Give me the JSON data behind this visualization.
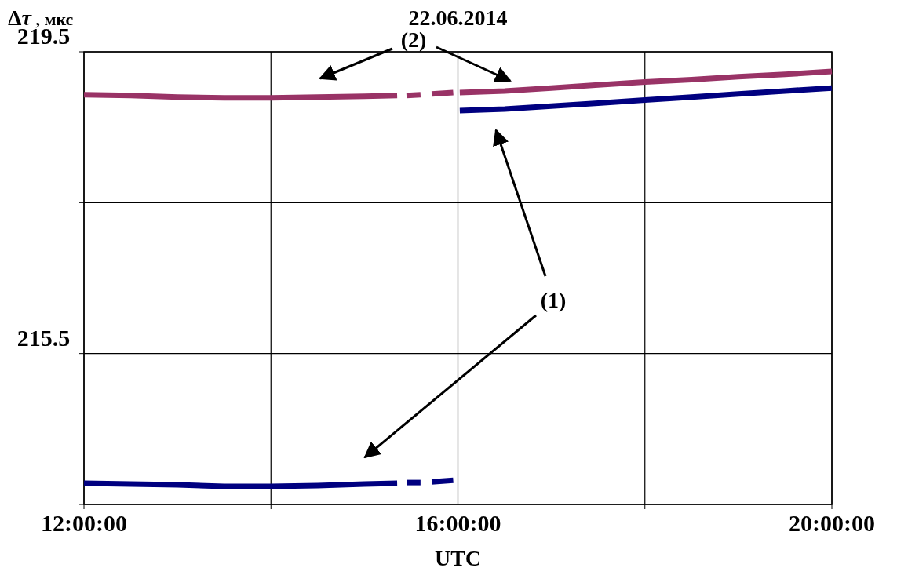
{
  "chart_data": {
    "type": "line",
    "title": "22.06.2014",
    "ylabel": "Δτ , мкс",
    "xlabel": "UTC",
    "xlim": [
      12,
      20
    ],
    "ylim": [
      213.5,
      219.5
    ],
    "xticks": [
      {
        "value": 12,
        "label": "12:00:00"
      },
      {
        "value": 14,
        "label": null
      },
      {
        "value": 16,
        "label": "16:00:00"
      },
      {
        "value": 18,
        "label": null
      },
      {
        "value": 20,
        "label": "20:00:00"
      }
    ],
    "yticks": [
      {
        "value": 213.5,
        "label": null
      },
      {
        "value": 215.5,
        "label": "215.5"
      },
      {
        "value": 217.5,
        "label": null
      },
      {
        "value": 219.5,
        "label": "219.5"
      }
    ],
    "grid": true,
    "line_style": "solid",
    "annotations": [
      "(2)",
      "(1)"
    ],
    "series": [
      {
        "color": "#000080",
        "x": [
          12,
          12.5,
          13,
          13.5,
          14,
          14.5,
          15,
          15.35
        ],
        "values": [
          213.78,
          213.77,
          213.76,
          213.74,
          213.74,
          213.75,
          213.77,
          213.78
        ]
      },
      {
        "color": "#000080",
        "x": [
          15.45,
          15.6
        ],
        "values": [
          213.79,
          213.79
        ]
      },
      {
        "color": "#000080",
        "x": [
          15.72,
          15.95
        ],
        "values": [
          213.8,
          213.82
        ]
      },
      {
        "color": "#000080",
        "x": [
          16.02,
          16.5,
          17,
          17.5,
          18,
          18.5,
          19,
          19.5,
          20
        ],
        "values": [
          218.72,
          218.74,
          218.78,
          218.82,
          218.86,
          218.9,
          218.94,
          218.98,
          219.02
        ]
      },
      {
        "color": "#993366",
        "x": [
          12,
          12.5,
          13,
          13.5,
          14,
          14.5,
          15,
          15.35
        ],
        "values": [
          218.93,
          218.92,
          218.9,
          218.89,
          218.89,
          218.9,
          218.91,
          218.92
        ]
      },
      {
        "color": "#993366",
        "x": [
          15.45,
          15.6
        ],
        "values": [
          218.92,
          218.93
        ]
      },
      {
        "color": "#993366",
        "x": [
          15.72,
          15.95
        ],
        "values": [
          218.94,
          218.96
        ]
      },
      {
        "color": "#993366",
        "x": [
          16.02,
          16.5,
          17,
          17.5,
          18,
          18.5,
          19,
          19.5,
          20
        ],
        "values": [
          218.96,
          218.98,
          219.02,
          219.06,
          219.1,
          219.13,
          219.17,
          219.2,
          219.24
        ]
      }
    ]
  }
}
